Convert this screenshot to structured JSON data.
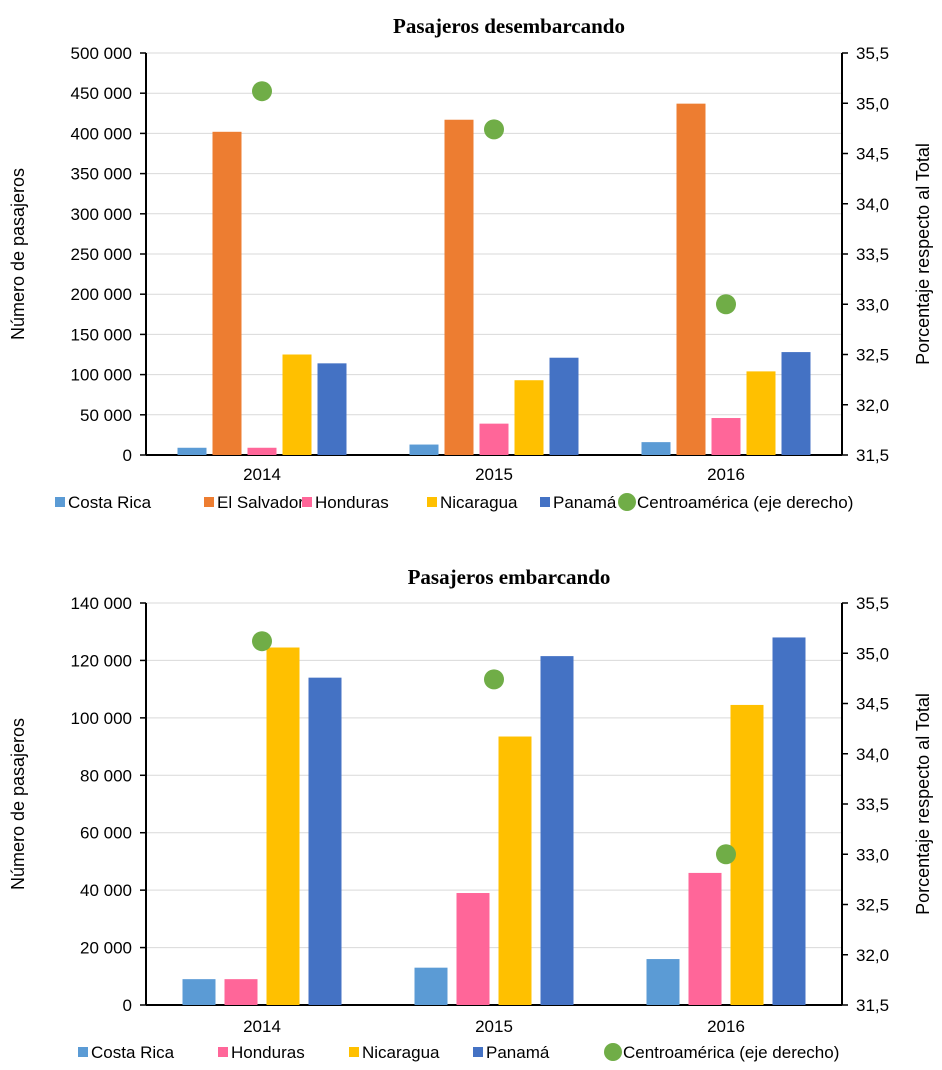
{
  "chart_data": [
    {
      "type": "bar",
      "title": "Pasajeros desembarcando",
      "ylabel": "Número de pasajeros",
      "y2label": "Porcentaje respecto al Total",
      "categories": [
        "2014",
        "2015",
        "2016"
      ],
      "ylim": [
        0,
        500000
      ],
      "yticks": [
        0,
        50000,
        100000,
        150000,
        200000,
        250000,
        300000,
        350000,
        400000,
        450000,
        500000
      ],
      "ytick_labels": [
        "0",
        "50 000",
        "100 000",
        "150 000",
        "200 000",
        "250 000",
        "300 000",
        "350 000",
        "400 000",
        "450 000",
        "500 000"
      ],
      "y2lim": [
        31.5,
        35.5
      ],
      "y2ticks": [
        31.5,
        32.0,
        32.5,
        33.0,
        33.5,
        34.0,
        34.5,
        35.0,
        35.5
      ],
      "y2tick_labels": [
        "31,5",
        "32,0",
        "32,5",
        "33,0",
        "33,5",
        "34,0",
        "34,5",
        "35,0",
        "35,5"
      ],
      "grid": true,
      "legend_position": "bottom",
      "series": [
        {
          "name": "Costa Rica",
          "color": "#5b9bd5",
          "values": [
            9000,
            13000,
            16000
          ]
        },
        {
          "name": "El Salvador",
          "color": "#ed7d31",
          "values": [
            402000,
            417000,
            437000
          ]
        },
        {
          "name": "Honduras",
          "color": "#ff6699",
          "values": [
            9000,
            39000,
            46000
          ]
        },
        {
          "name": "Nicaragua",
          "color": "#ffc000",
          "values": [
            125000,
            93000,
            104000
          ]
        },
        {
          "name": "Panamá",
          "color": "#4472c4",
          "values": [
            114000,
            121000,
            128000
          ]
        }
      ],
      "line_series": {
        "name": "Centroamérica (eje derecho)",
        "color": "#70ad47",
        "axis": "right",
        "values": [
          35.12,
          34.74,
          33.0
        ]
      }
    },
    {
      "type": "bar",
      "title": "Pasajeros embarcando",
      "ylabel": "Número de pasajeros",
      "y2label": "Porcentaje respecto al Total",
      "categories": [
        "2014",
        "2015",
        "2016"
      ],
      "ylim": [
        0,
        140000
      ],
      "yticks": [
        0,
        20000,
        40000,
        60000,
        80000,
        100000,
        120000,
        140000
      ],
      "ytick_labels": [
        "0",
        "20 000",
        "40 000",
        "60 000",
        "80 000",
        "100 000",
        "120 000",
        "140 000"
      ],
      "y2lim": [
        31.5,
        35.5
      ],
      "y2ticks": [
        31.5,
        32.0,
        32.5,
        33.0,
        33.5,
        34.0,
        34.5,
        35.0,
        35.5
      ],
      "y2tick_labels": [
        "31,5",
        "32,0",
        "32,5",
        "33,0",
        "33,5",
        "34,0",
        "34,5",
        "35,0",
        "35,5"
      ],
      "grid": true,
      "legend_position": "bottom",
      "series": [
        {
          "name": "Costa Rica",
          "color": "#5b9bd5",
          "values": [
            9000,
            13000,
            16000
          ]
        },
        {
          "name": "Honduras",
          "color": "#ff6699",
          "values": [
            9000,
            39000,
            46000
          ]
        },
        {
          "name": "Nicaragua",
          "color": "#ffc000",
          "values": [
            124500,
            93500,
            104500
          ]
        },
        {
          "name": "Panamá",
          "color": "#4472c4",
          "values": [
            114000,
            121500,
            128000
          ]
        }
      ],
      "line_series": {
        "name": "Centroamérica (eje derecho)",
        "color": "#70ad47",
        "axis": "right",
        "values": [
          35.12,
          34.74,
          33.0
        ]
      }
    }
  ]
}
